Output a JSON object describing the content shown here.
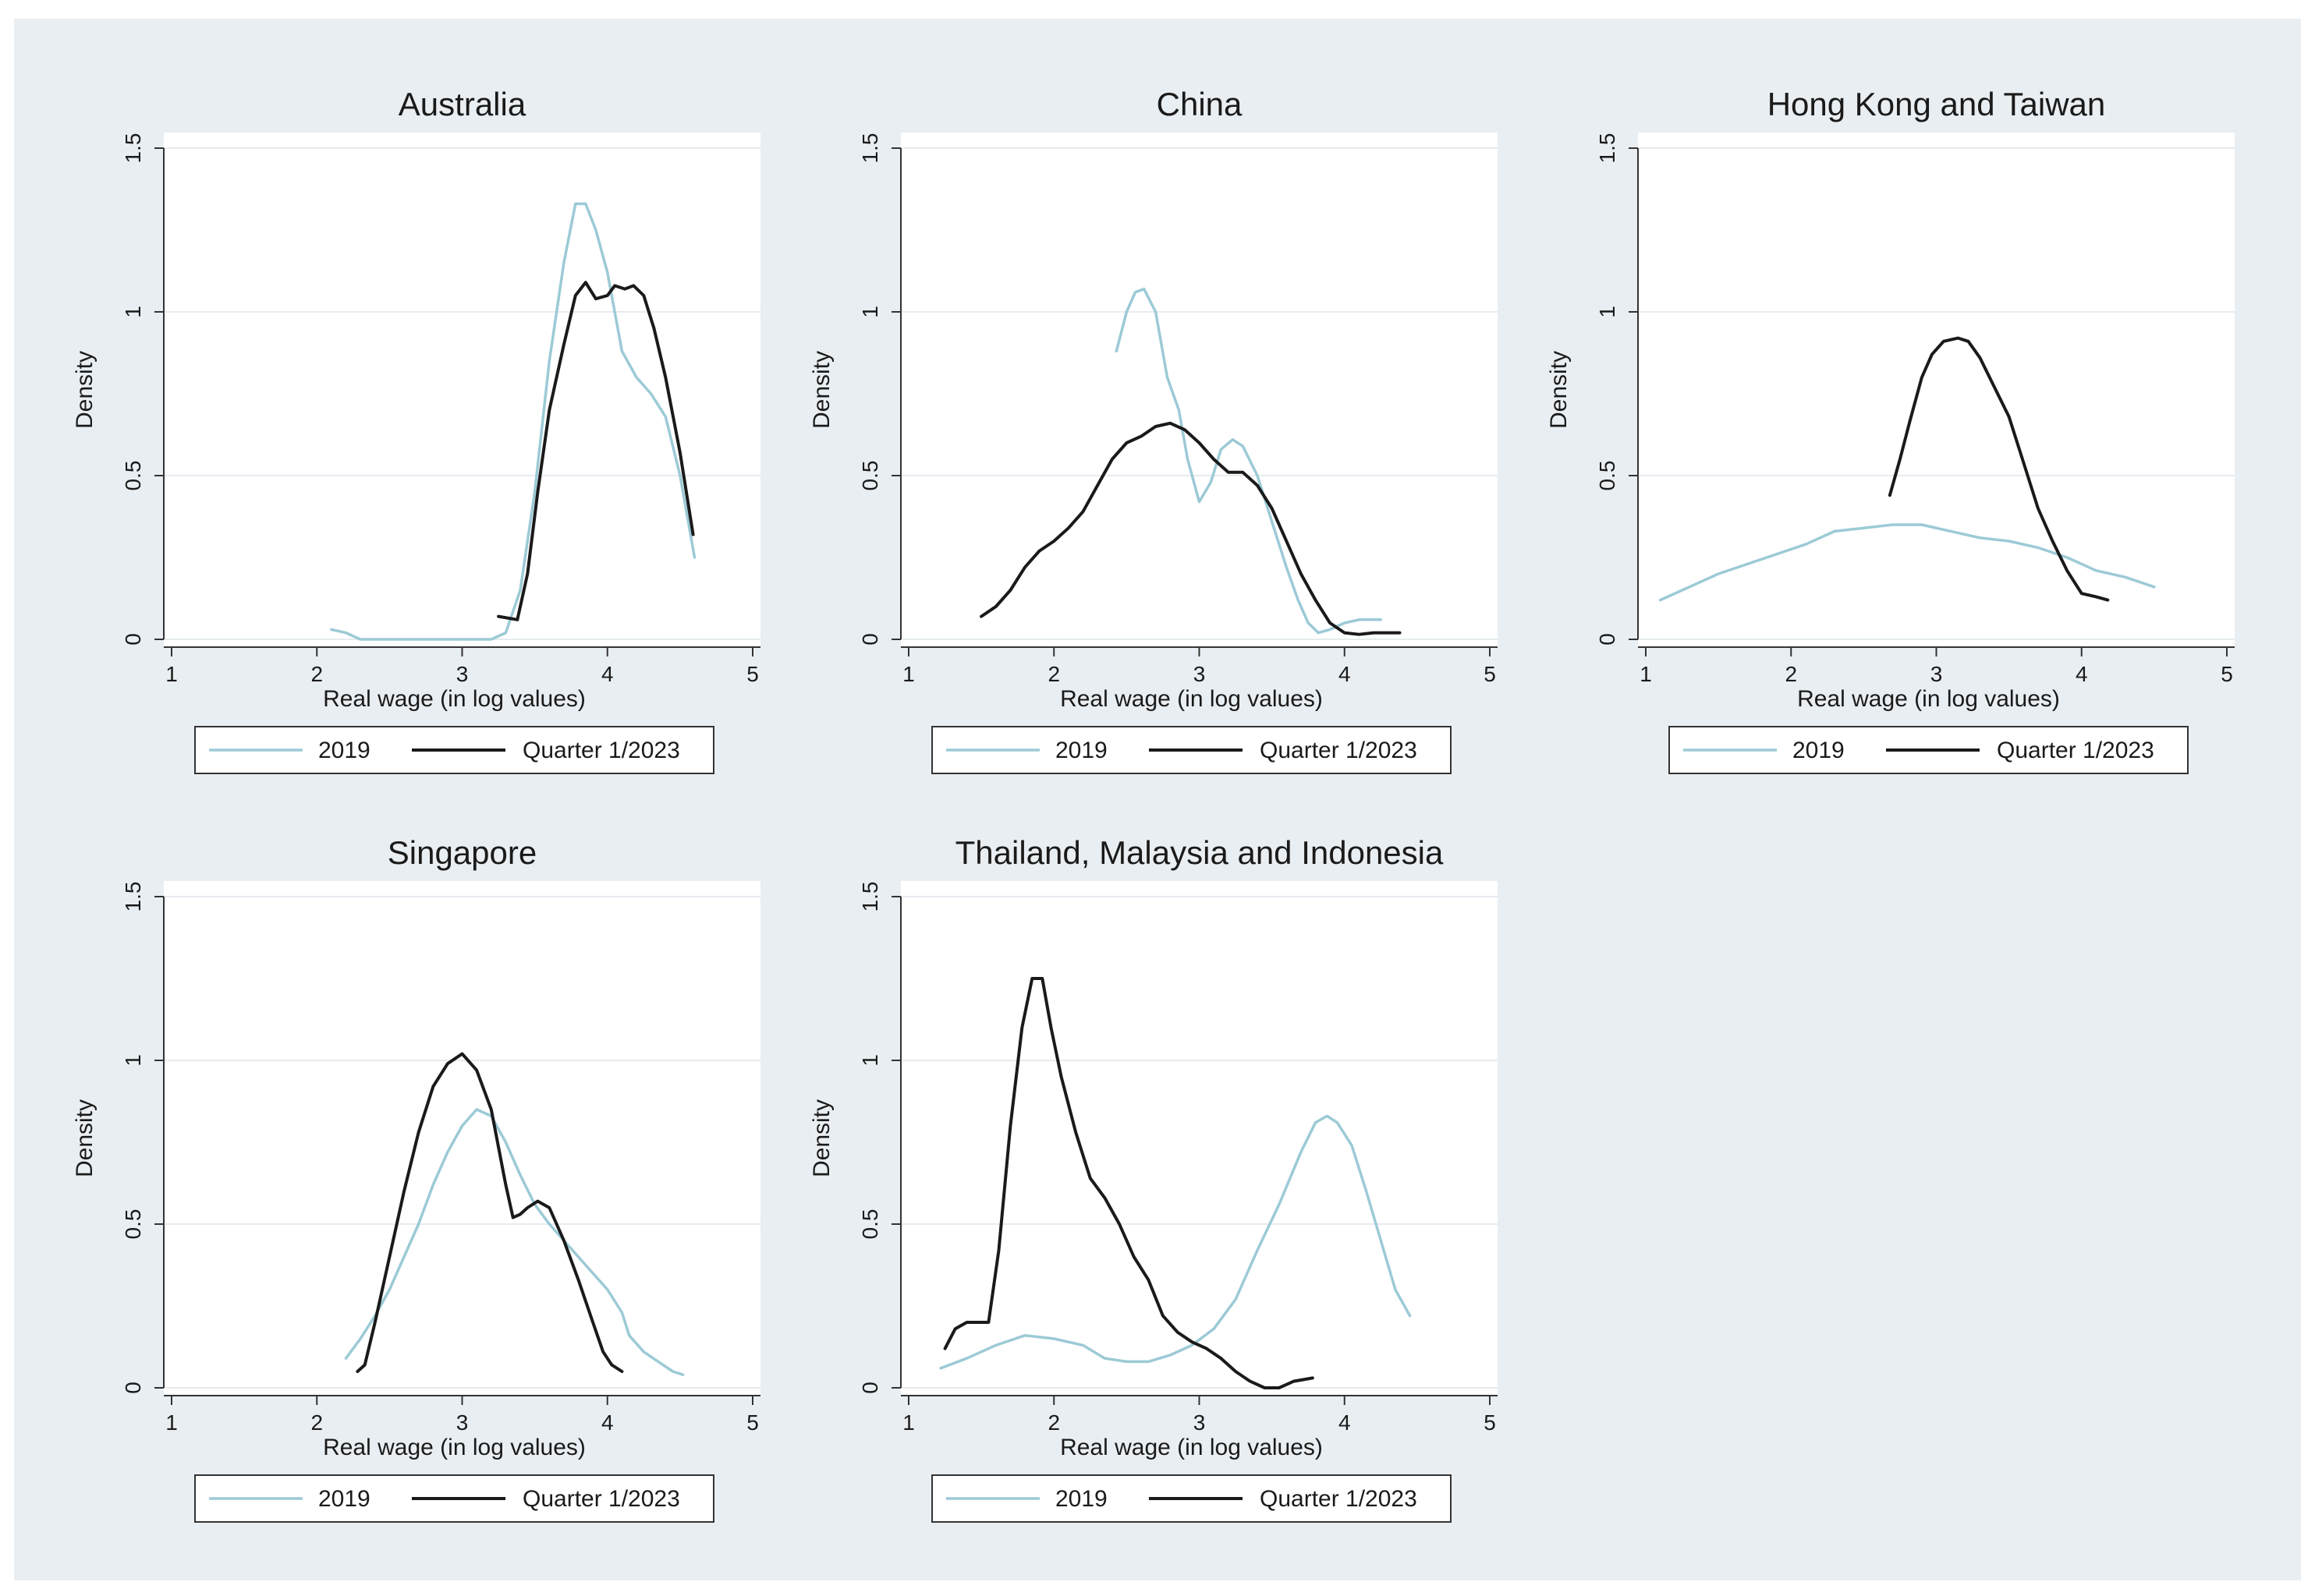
{
  "colors": {
    "outer_background": "#e9eef2",
    "panel_background": "#ffffff",
    "grid": "#e6ecf0",
    "axis": "#333333",
    "series_2019": "#9ccad6",
    "series_2023": "#1a1a1a"
  },
  "chart_data": [
    {
      "type": "line",
      "title": "Australia",
      "xlabel": "Real wage (in log values)",
      "ylabel": "Density",
      "xlim": [
        1,
        5
      ],
      "ylim": [
        0,
        1.5
      ],
      "xticks": [
        "1",
        "2",
        "3",
        "4",
        "5"
      ],
      "yticks": [
        "0",
        "0.5",
        "1",
        "1.5"
      ],
      "grid": true,
      "legend": {
        "position": "bottom",
        "entries": [
          "2019",
          "Quarter 1/2023"
        ]
      },
      "series": [
        {
          "name": "2019",
          "points": [
            [
              2.1,
              0.03
            ],
            [
              2.2,
              0.02
            ],
            [
              2.3,
              0.0
            ],
            [
              2.5,
              0.0
            ],
            [
              2.7,
              0.0
            ],
            [
              2.9,
              0.0
            ],
            [
              3.1,
              0.0
            ],
            [
              3.2,
              0.0
            ],
            [
              3.3,
              0.02
            ],
            [
              3.4,
              0.15
            ],
            [
              3.5,
              0.45
            ],
            [
              3.6,
              0.85
            ],
            [
              3.7,
              1.15
            ],
            [
              3.78,
              1.33
            ],
            [
              3.85,
              1.33
            ],
            [
              3.92,
              1.25
            ],
            [
              4.0,
              1.12
            ],
            [
              4.05,
              1.0
            ],
            [
              4.1,
              0.88
            ],
            [
              4.2,
              0.8
            ],
            [
              4.3,
              0.75
            ],
            [
              4.4,
              0.68
            ],
            [
              4.5,
              0.5
            ],
            [
              4.6,
              0.25
            ]
          ]
        },
        {
          "name": "Quarter 1/2023",
          "points": [
            [
              3.25,
              0.07
            ],
            [
              3.38,
              0.06
            ],
            [
              3.45,
              0.2
            ],
            [
              3.52,
              0.45
            ],
            [
              3.6,
              0.7
            ],
            [
              3.7,
              0.9
            ],
            [
              3.78,
              1.05
            ],
            [
              3.85,
              1.09
            ],
            [
              3.92,
              1.04
            ],
            [
              4.0,
              1.05
            ],
            [
              4.05,
              1.08
            ],
            [
              4.12,
              1.07
            ],
            [
              4.18,
              1.08
            ],
            [
              4.25,
              1.05
            ],
            [
              4.32,
              0.95
            ],
            [
              4.4,
              0.8
            ],
            [
              4.5,
              0.57
            ],
            [
              4.59,
              0.32
            ]
          ]
        }
      ]
    },
    {
      "type": "line",
      "title": "China",
      "xlabel": "Real wage (in log values)",
      "ylabel": "Density",
      "xlim": [
        1,
        5
      ],
      "ylim": [
        0,
        1.5
      ],
      "xticks": [
        "1",
        "2",
        "3",
        "4",
        "5"
      ],
      "yticks": [
        "0",
        "0.5",
        "1",
        "1.5"
      ],
      "grid": true,
      "legend": {
        "position": "bottom",
        "entries": [
          "2019",
          "Quarter 1/2023"
        ]
      },
      "series": [
        {
          "name": "2019",
          "points": [
            [
              2.43,
              0.88
            ],
            [
              2.5,
              1.0
            ],
            [
              2.56,
              1.06
            ],
            [
              2.62,
              1.07
            ],
            [
              2.7,
              1.0
            ],
            [
              2.78,
              0.8
            ],
            [
              2.86,
              0.7
            ],
            [
              2.92,
              0.55
            ],
            [
              3.0,
              0.42
            ],
            [
              3.08,
              0.48
            ],
            [
              3.15,
              0.58
            ],
            [
              3.23,
              0.61
            ],
            [
              3.3,
              0.59
            ],
            [
              3.4,
              0.5
            ],
            [
              3.5,
              0.36
            ],
            [
              3.6,
              0.22
            ],
            [
              3.68,
              0.12
            ],
            [
              3.75,
              0.05
            ],
            [
              3.82,
              0.02
            ],
            [
              3.9,
              0.03
            ],
            [
              4.0,
              0.05
            ],
            [
              4.1,
              0.06
            ],
            [
              4.25,
              0.06
            ]
          ]
        },
        {
          "name": "Quarter 1/2023",
          "points": [
            [
              1.5,
              0.07
            ],
            [
              1.6,
              0.1
            ],
            [
              1.7,
              0.15
            ],
            [
              1.8,
              0.22
            ],
            [
              1.9,
              0.27
            ],
            [
              2.0,
              0.3
            ],
            [
              2.1,
              0.34
            ],
            [
              2.2,
              0.39
            ],
            [
              2.3,
              0.47
            ],
            [
              2.4,
              0.55
            ],
            [
              2.5,
              0.6
            ],
            [
              2.6,
              0.62
            ],
            [
              2.7,
              0.65
            ],
            [
              2.8,
              0.66
            ],
            [
              2.9,
              0.64
            ],
            [
              3.0,
              0.6
            ],
            [
              3.1,
              0.55
            ],
            [
              3.2,
              0.51
            ],
            [
              3.3,
              0.51
            ],
            [
              3.4,
              0.47
            ],
            [
              3.5,
              0.4
            ],
            [
              3.6,
              0.3
            ],
            [
              3.7,
              0.2
            ],
            [
              3.8,
              0.12
            ],
            [
              3.9,
              0.05
            ],
            [
              4.0,
              0.02
            ],
            [
              4.1,
              0.015
            ],
            [
              4.2,
              0.02
            ],
            [
              4.38,
              0.02
            ]
          ]
        }
      ]
    },
    {
      "type": "line",
      "title": "Hong Kong and Taiwan",
      "xlabel": "Real wage (in log values)",
      "ylabel": "Density",
      "xlim": [
        1,
        5
      ],
      "ylim": [
        0,
        1.5
      ],
      "xticks": [
        "1",
        "2",
        "3",
        "4",
        "5"
      ],
      "yticks": [
        "0",
        "0.5",
        "1",
        "1.5"
      ],
      "grid": true,
      "legend": {
        "position": "bottom",
        "entries": [
          "2019",
          "Quarter 1/2023"
        ]
      },
      "series": [
        {
          "name": "2019",
          "points": [
            [
              1.1,
              0.12
            ],
            [
              1.3,
              0.16
            ],
            [
              1.5,
              0.2
            ],
            [
              1.7,
              0.23
            ],
            [
              1.9,
              0.26
            ],
            [
              2.1,
              0.29
            ],
            [
              2.3,
              0.33
            ],
            [
              2.5,
              0.34
            ],
            [
              2.7,
              0.35
            ],
            [
              2.9,
              0.35
            ],
            [
              3.1,
              0.33
            ],
            [
              3.3,
              0.31
            ],
            [
              3.5,
              0.3
            ],
            [
              3.7,
              0.28
            ],
            [
              3.9,
              0.25
            ],
            [
              4.1,
              0.21
            ],
            [
              4.3,
              0.19
            ],
            [
              4.5,
              0.16
            ]
          ]
        },
        {
          "name": "Quarter 1/2023",
          "points": [
            [
              2.68,
              0.44
            ],
            [
              2.75,
              0.55
            ],
            [
              2.82,
              0.67
            ],
            [
              2.9,
              0.8
            ],
            [
              2.97,
              0.87
            ],
            [
              3.05,
              0.91
            ],
            [
              3.15,
              0.92
            ],
            [
              3.22,
              0.91
            ],
            [
              3.3,
              0.86
            ],
            [
              3.4,
              0.77
            ],
            [
              3.5,
              0.68
            ],
            [
              3.6,
              0.54
            ],
            [
              3.7,
              0.4
            ],
            [
              3.8,
              0.3
            ],
            [
              3.9,
              0.21
            ],
            [
              4.0,
              0.14
            ],
            [
              4.1,
              0.13
            ],
            [
              4.18,
              0.12
            ]
          ]
        }
      ]
    },
    {
      "type": "line",
      "title": "Singapore",
      "xlabel": "Real wage (in log values)",
      "ylabel": "Density",
      "xlim": [
        1,
        5
      ],
      "ylim": [
        0,
        1.5
      ],
      "xticks": [
        "1",
        "2",
        "3",
        "4",
        "5"
      ],
      "yticks": [
        "0",
        "0.5",
        "1",
        "1.5"
      ],
      "grid": true,
      "legend": {
        "position": "bottom",
        "entries": [
          "2019",
          "Quarter 1/2023"
        ]
      },
      "series": [
        {
          "name": "2019",
          "points": [
            [
              2.2,
              0.09
            ],
            [
              2.3,
              0.15
            ],
            [
              2.4,
              0.22
            ],
            [
              2.5,
              0.3
            ],
            [
              2.6,
              0.4
            ],
            [
              2.7,
              0.5
            ],
            [
              2.8,
              0.62
            ],
            [
              2.9,
              0.72
            ],
            [
              3.0,
              0.8
            ],
            [
              3.1,
              0.85
            ],
            [
              3.2,
              0.83
            ],
            [
              3.3,
              0.75
            ],
            [
              3.4,
              0.65
            ],
            [
              3.5,
              0.56
            ],
            [
              3.6,
              0.5
            ],
            [
              3.7,
              0.45
            ],
            [
              3.8,
              0.4
            ],
            [
              3.9,
              0.35
            ],
            [
              4.0,
              0.3
            ],
            [
              4.1,
              0.23
            ],
            [
              4.15,
              0.16
            ],
            [
              4.25,
              0.11
            ],
            [
              4.35,
              0.08
            ],
            [
              4.45,
              0.05
            ],
            [
              4.52,
              0.04
            ]
          ]
        },
        {
          "name": "Quarter 1/2023",
          "points": [
            [
              2.28,
              0.05
            ],
            [
              2.33,
              0.07
            ],
            [
              2.4,
              0.2
            ],
            [
              2.5,
              0.4
            ],
            [
              2.6,
              0.6
            ],
            [
              2.7,
              0.78
            ],
            [
              2.8,
              0.92
            ],
            [
              2.9,
              0.99
            ],
            [
              3.0,
              1.02
            ],
            [
              3.1,
              0.97
            ],
            [
              3.2,
              0.85
            ],
            [
              3.3,
              0.62
            ],
            [
              3.35,
              0.52
            ],
            [
              3.4,
              0.53
            ],
            [
              3.45,
              0.55
            ],
            [
              3.52,
              0.57
            ],
            [
              3.6,
              0.55
            ],
            [
              3.7,
              0.45
            ],
            [
              3.8,
              0.33
            ],
            [
              3.9,
              0.2
            ],
            [
              3.97,
              0.11
            ],
            [
              4.03,
              0.07
            ],
            [
              4.1,
              0.05
            ]
          ]
        }
      ]
    },
    {
      "type": "line",
      "title": "Thailand, Malaysia and Indonesia",
      "xlabel": "Real wage (in log values)",
      "ylabel": "Density",
      "xlim": [
        1,
        5
      ],
      "ylim": [
        0,
        1.5
      ],
      "xticks": [
        "1",
        "2",
        "3",
        "4",
        "5"
      ],
      "yticks": [
        "0",
        "0.5",
        "1",
        "1.5"
      ],
      "grid": true,
      "legend": {
        "position": "bottom",
        "entries": [
          "2019",
          "Quarter 1/2023"
        ]
      },
      "series": [
        {
          "name": "2019",
          "points": [
            [
              1.22,
              0.06
            ],
            [
              1.4,
              0.09
            ],
            [
              1.6,
              0.13
            ],
            [
              1.8,
              0.16
            ],
            [
              2.0,
              0.15
            ],
            [
              2.2,
              0.13
            ],
            [
              2.35,
              0.09
            ],
            [
              2.5,
              0.08
            ],
            [
              2.65,
              0.08
            ],
            [
              2.8,
              0.1
            ],
            [
              2.95,
              0.13
            ],
            [
              3.1,
              0.18
            ],
            [
              3.25,
              0.27
            ],
            [
              3.4,
              0.42
            ],
            [
              3.55,
              0.56
            ],
            [
              3.7,
              0.72
            ],
            [
              3.8,
              0.81
            ],
            [
              3.88,
              0.83
            ],
            [
              3.95,
              0.81
            ],
            [
              4.05,
              0.74
            ],
            [
              4.15,
              0.6
            ],
            [
              4.25,
              0.45
            ],
            [
              4.35,
              0.3
            ],
            [
              4.45,
              0.22
            ]
          ]
        },
        {
          "name": "Quarter 1/2023",
          "points": [
            [
              1.25,
              0.12
            ],
            [
              1.32,
              0.18
            ],
            [
              1.4,
              0.2
            ],
            [
              1.5,
              0.2
            ],
            [
              1.55,
              0.2
            ],
            [
              1.62,
              0.42
            ],
            [
              1.7,
              0.8
            ],
            [
              1.78,
              1.1
            ],
            [
              1.85,
              1.25
            ],
            [
              1.92,
              1.25
            ],
            [
              1.98,
              1.1
            ],
            [
              2.05,
              0.95
            ],
            [
              2.15,
              0.78
            ],
            [
              2.25,
              0.64
            ],
            [
              2.35,
              0.58
            ],
            [
              2.45,
              0.5
            ],
            [
              2.55,
              0.4
            ],
            [
              2.65,
              0.33
            ],
            [
              2.75,
              0.22
            ],
            [
              2.85,
              0.17
            ],
            [
              2.95,
              0.14
            ],
            [
              3.05,
              0.12
            ],
            [
              3.15,
              0.09
            ],
            [
              3.25,
              0.05
            ],
            [
              3.35,
              0.02
            ],
            [
              3.45,
              0.0
            ],
            [
              3.55,
              0.0
            ],
            [
              3.65,
              0.02
            ],
            [
              3.78,
              0.03
            ]
          ]
        }
      ]
    }
  ]
}
